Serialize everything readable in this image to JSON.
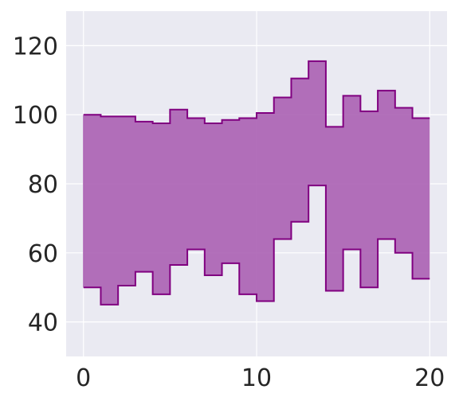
{
  "chart_data": {
    "type": "area",
    "style": "step-post band (fill between)",
    "x": [
      0,
      1,
      2,
      3,
      4,
      5,
      6,
      7,
      8,
      9,
      10,
      11,
      12,
      13,
      14,
      15,
      16,
      17,
      18,
      19,
      20
    ],
    "series": [
      {
        "role": "upper",
        "values": [
          100,
          99.5,
          99.5,
          98,
          97.5,
          101.5,
          99,
          97.5,
          98.5,
          99,
          100.5,
          105,
          110.5,
          115.5,
          96.5,
          105.5,
          101,
          107,
          102,
          99,
          99
        ]
      },
      {
        "role": "lower",
        "values": [
          50,
          45,
          50.5,
          54.5,
          48,
          56.5,
          61,
          53.5,
          57,
          48,
          46,
          64,
          69,
          79.5,
          49,
          61,
          50,
          64,
          60,
          52.5,
          52.5
        ]
      }
    ],
    "xlim": [
      -1,
      21
    ],
    "ylim": [
      30,
      130
    ],
    "xticks": [
      "0",
      "10",
      "20"
    ],
    "yticks": [
      "40",
      "60",
      "80",
      "100",
      "120"
    ],
    "title": "",
    "xlabel": "",
    "ylabel": "",
    "grid": true,
    "colors": {
      "fill": "#a85cb0",
      "edge": "#800080",
      "background": "#eaeaf2",
      "grid": "#ffffff"
    }
  }
}
